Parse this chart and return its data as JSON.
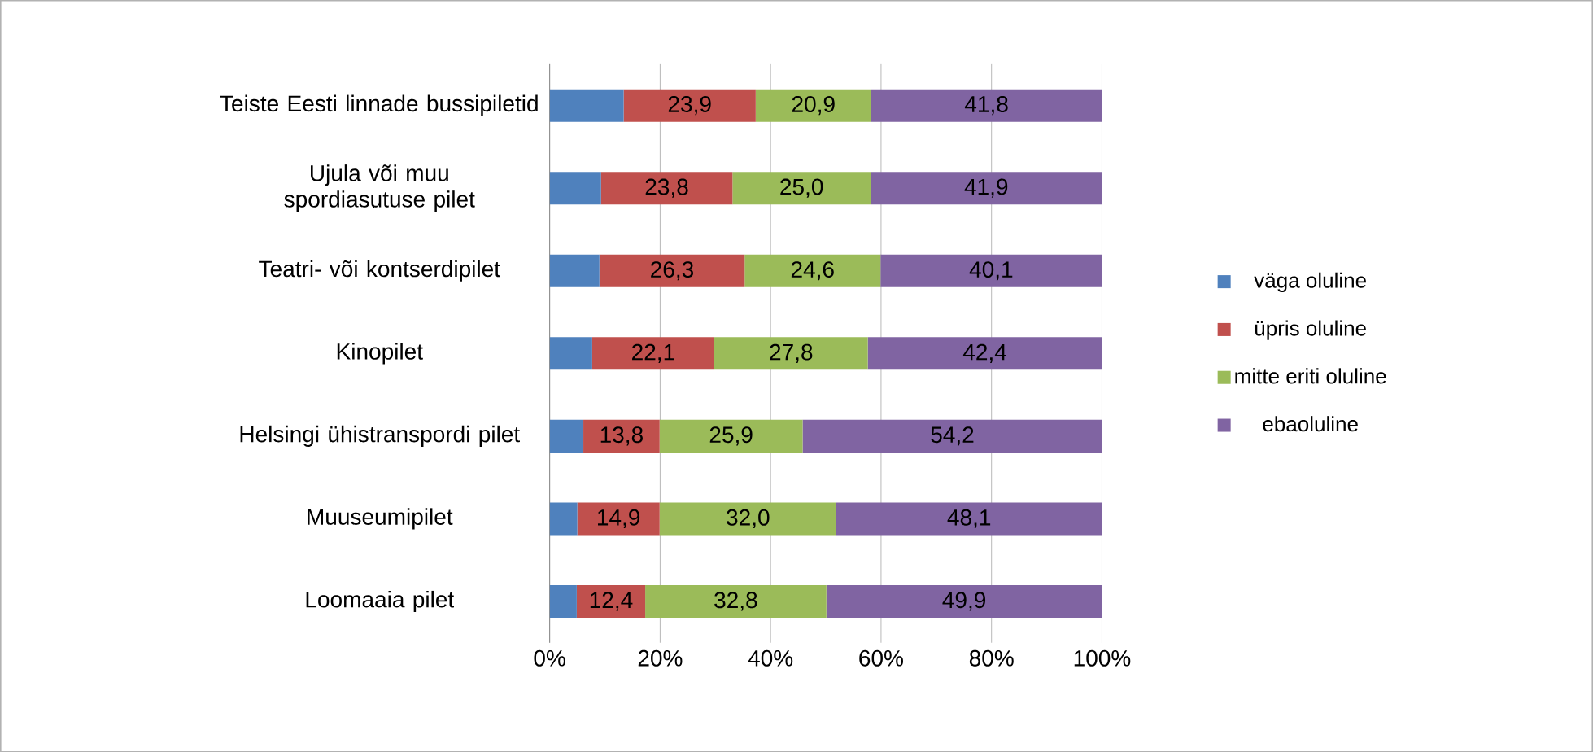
{
  "chart_data": {
    "type": "bar",
    "orientation": "horizontal",
    "stacked": true,
    "categories": [
      "Teiste Eesti linnade bussipiletid",
      "Ujula või muu spordiasutuse pilet",
      "Teatri- või kontserdipilet",
      "Kinopilet",
      "Helsingi ühistranspordi pilet",
      "Muuseumipilet",
      "Loomaaia pilet"
    ],
    "series": [
      {
        "name": "väga oluline",
        "color": "#4f81bd",
        "values": [
          13.4,
          9.3,
          9.0,
          7.7,
          6.1,
          5.0,
          4.9
        ]
      },
      {
        "name": "üpris oluline",
        "color": "#c0504d",
        "values": [
          23.9,
          23.8,
          26.3,
          22.1,
          13.8,
          14.9,
          12.4
        ],
        "value_labels": [
          "23,9",
          "23,8",
          "26,3",
          "22,1",
          "13,8",
          "14,9",
          "12,4"
        ]
      },
      {
        "name": "mitte eriti oluline",
        "color": "#9bbb59",
        "values": [
          20.9,
          25.0,
          24.6,
          27.8,
          25.9,
          32.0,
          32.8
        ],
        "value_labels": [
          "20,9",
          "25,0",
          "24,6",
          "27,8",
          "25,9",
          "32,0",
          "32,8"
        ]
      },
      {
        "name": "ebaoluline",
        "color": "#8064a2",
        "values": [
          41.8,
          41.9,
          40.1,
          42.4,
          54.2,
          48.1,
          49.9
        ],
        "value_labels": [
          "41,8",
          "41,9",
          "40,1",
          "42,4",
          "54,2",
          "48,1",
          "49,9"
        ]
      }
    ],
    "xlim": [
      0,
      100
    ],
    "xticks": [
      {
        "value": 0,
        "label": "0%"
      },
      {
        "value": 20,
        "label": "20%"
      },
      {
        "value": 40,
        "label": "40%"
      },
      {
        "value": 60,
        "label": "60%"
      },
      {
        "value": 80,
        "label": "80%"
      },
      {
        "value": 100,
        "label": "100%"
      }
    ],
    "grid": "x",
    "legend": "right"
  }
}
